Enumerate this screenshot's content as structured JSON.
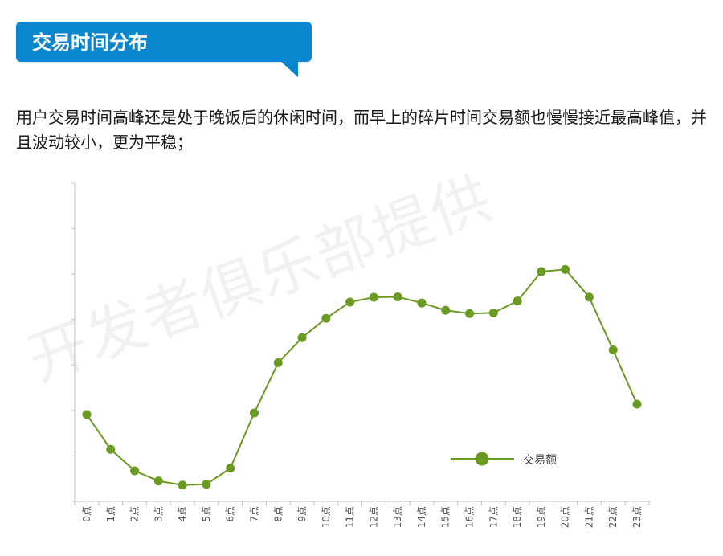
{
  "header": {
    "title": "交易时间分布"
  },
  "description": "用户交易时间高峰还是处于晚饭后的休闲时间，而早上的碎片时间交易额也慢慢接近最高峰值，并且波动较小，更为平稳；",
  "watermark": "开发者俱乐部提供",
  "colors": {
    "banner": "#0a86cf",
    "series": "#6a9a22",
    "axis": "#bfbfbf"
  },
  "chart_data": {
    "type": "line",
    "title": "",
    "xlabel": "",
    "ylabel": "",
    "categories": [
      "0点",
      "1点",
      "2点",
      "3点",
      "4点",
      "5点",
      "6点",
      "7点",
      "8点",
      "9点",
      "10点",
      "11点",
      "12点",
      "13点",
      "14点",
      "15点",
      "16点",
      "17点",
      "18点",
      "19点",
      "20点",
      "21点",
      "22点",
      "23点"
    ],
    "series": [
      {
        "name": "交易额",
        "values": [
          39.6,
          23.7,
          13.9,
          9.3,
          7.4,
          7.8,
          15.1,
          40.3,
          63.2,
          74.6,
          83.4,
          90.8,
          93.0,
          93.2,
          90.4,
          87.1,
          85.6,
          85.9,
          91.3,
          104.7,
          105.7,
          93.1,
          69.0,
          44.3
        ]
      }
    ],
    "ylim": [
      0,
      145
    ],
    "y_tick_labels_shown": false,
    "grid": false,
    "legend_position": "bottom-right"
  }
}
